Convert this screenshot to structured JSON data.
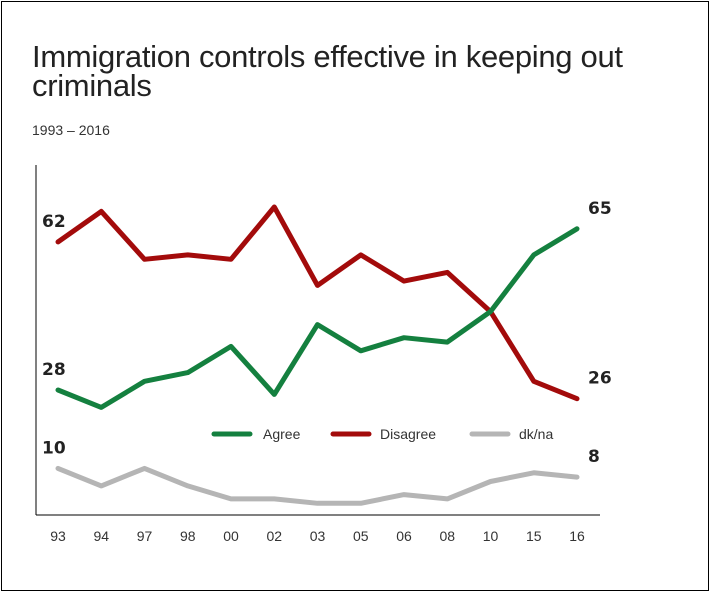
{
  "chart_data": {
    "type": "line",
    "title": "Immigration controls effective in keeping out criminals",
    "subtitle": "1993 – 2016",
    "categories": [
      "93",
      "94",
      "97",
      "98",
      "00",
      "02",
      "03",
      "05",
      "06",
      "08",
      "10",
      "15",
      "16"
    ],
    "ylim": [
      0,
      70
    ],
    "grid": false,
    "legend_position": "lower-middle",
    "series": [
      {
        "name": "Agree",
        "color": "#14803f",
        "values": [
          28,
          24,
          30,
          32,
          38,
          27,
          43,
          37,
          40,
          39,
          46,
          59,
          65
        ]
      },
      {
        "name": "Disagree",
        "color": "#a30b0b",
        "values": [
          62,
          69,
          58,
          59,
          58,
          70,
          52,
          59,
          53,
          55,
          46,
          30,
          26
        ]
      },
      {
        "name": "dk/na",
        "color": "#b5b5b5",
        "values": [
          10,
          6,
          10,
          6,
          3,
          3,
          2,
          2,
          4,
          3,
          7,
          9,
          8
        ]
      }
    ],
    "data_labels": [
      {
        "series": 1,
        "index": 0,
        "text": "62"
      },
      {
        "series": 0,
        "index": 0,
        "text": "28"
      },
      {
        "series": 2,
        "index": 0,
        "text": "10"
      },
      {
        "series": 0,
        "index": 12,
        "text": "65"
      },
      {
        "series": 1,
        "index": 12,
        "text": "26"
      },
      {
        "series": 2,
        "index": 12,
        "text": "8"
      }
    ]
  }
}
